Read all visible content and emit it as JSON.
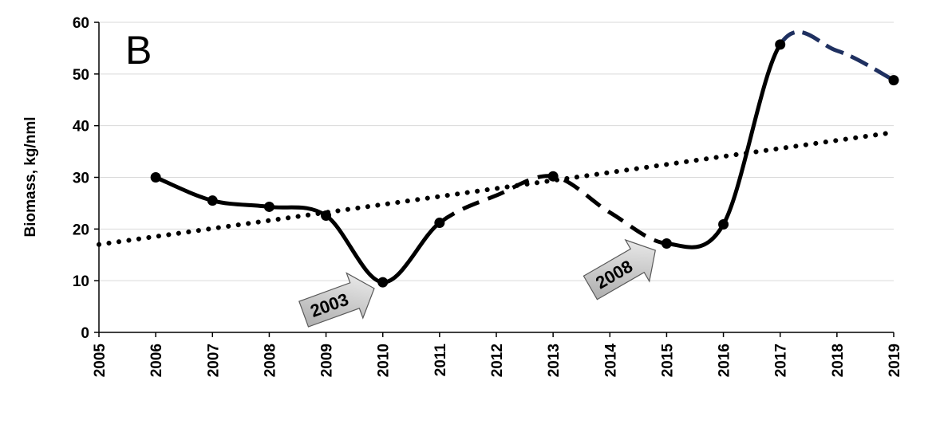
{
  "chart_data": {
    "type": "line",
    "panel_label": "B",
    "ylabel": "Biomass, kg/nml",
    "xlabel": "",
    "xlim": [
      2005,
      2019
    ],
    "ylim": [
      0,
      60
    ],
    "yticks": [
      0,
      10,
      20,
      30,
      40,
      50,
      60
    ],
    "xticks": [
      2005,
      2006,
      2007,
      2008,
      2009,
      2010,
      2011,
      2012,
      2013,
      2014,
      2015,
      2016,
      2017,
      2018,
      2019
    ],
    "grid": true,
    "legend": "none",
    "series": [
      {
        "style": "solid-black-smooth",
        "color": "#000000",
        "x": [
          2006,
          2007,
          2008,
          2009,
          2010,
          2011,
          2012,
          2013,
          2014,
          2015,
          2016,
          2017,
          2018,
          2019
        ],
        "y": [
          30,
          25.5,
          24.3,
          22.6,
          9.7,
          21.2,
          26.5,
          30.2,
          23.2,
          17.2,
          20.9,
          55.7,
          54.5,
          48.8
        ]
      },
      {
        "style": "dotted-linear-trend",
        "color": "#000000",
        "x": [
          2005,
          2019
        ],
        "y": [
          17,
          38.7
        ]
      }
    ],
    "annotations": [
      {
        "text": "2003",
        "points_to_x": 2010
      },
      {
        "text": "2008",
        "points_to_x": 2015
      }
    ],
    "colors": {
      "forecast": "#1f3060",
      "arrow_fill_light": "#f2f2f2",
      "arrow_fill_dark": "#a6a6a6",
      "grid": "#d9d9d9"
    }
  }
}
